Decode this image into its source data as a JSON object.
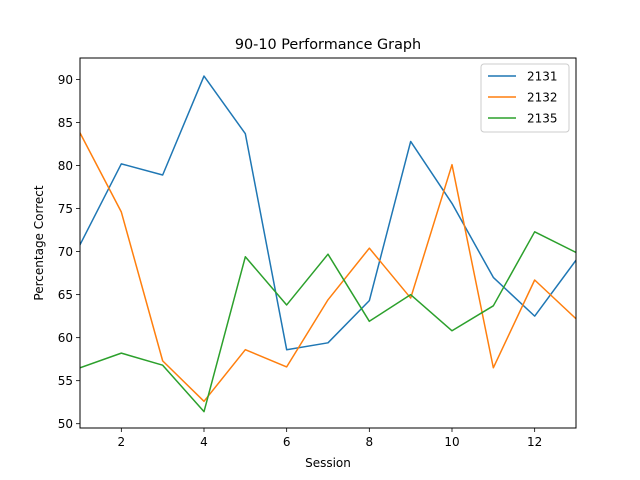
{
  "chart_data": {
    "type": "line",
    "title": "90-10 Performance Graph",
    "xlabel": "Session",
    "ylabel": "Percentage Correct",
    "xlim": [
      1,
      13
    ],
    "ylim": [
      49.5,
      92.5
    ],
    "xticks": [
      2,
      4,
      6,
      8,
      10,
      12
    ],
    "yticks": [
      50,
      55,
      60,
      65,
      70,
      75,
      80,
      85,
      90
    ],
    "grid": false,
    "legend_position": "top-right",
    "x": [
      1,
      2,
      3,
      4,
      5,
      6,
      7,
      8,
      9,
      10,
      11,
      12,
      13
    ],
    "series": [
      {
        "name": "2131",
        "color": "#1f77b4",
        "values": [
          70.8,
          80.2,
          78.9,
          90.4,
          83.7,
          58.6,
          59.4,
          64.3,
          82.8,
          75.6,
          67.0,
          62.5,
          69.0
        ]
      },
      {
        "name": "2132",
        "color": "#ff7f0e",
        "values": [
          83.8,
          74.6,
          57.3,
          52.6,
          58.6,
          56.6,
          64.4,
          70.4,
          64.6,
          80.1,
          56.5,
          66.7,
          62.2
        ]
      },
      {
        "name": "2135",
        "color": "#2ca02c",
        "values": [
          56.5,
          58.2,
          56.8,
          51.4,
          69.4,
          63.8,
          69.7,
          61.9,
          65.0,
          60.8,
          63.7,
          72.3,
          69.9
        ]
      }
    ]
  }
}
